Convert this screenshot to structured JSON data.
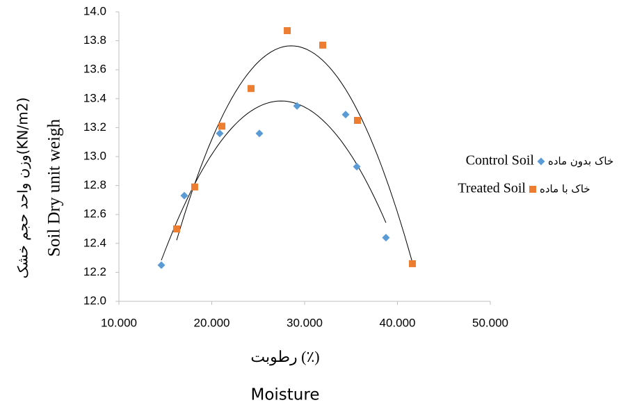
{
  "chart_data": {
    "type": "scatter",
    "x_label": "رطوبت (٪)",
    "x_label_en": "Moisture",
    "y_label": "وزن واحد حجم خشک(KN/m2)",
    "y_label_en": "Soil Dry unit weigh",
    "xlim": [
      10,
      50
    ],
    "xticks": [
      {
        "value": 10,
        "label": "10.000"
      },
      {
        "value": 20,
        "label": "20.000"
      },
      {
        "value": 30,
        "label": "30.000"
      },
      {
        "value": 40,
        "label": "40.000"
      },
      {
        "value": 50,
        "label": "50.000"
      }
    ],
    "ylim": [
      12,
      14
    ],
    "yticks": [
      {
        "value": 12,
        "label": "12.0"
      },
      {
        "value": 12.2,
        "label": "12.2"
      },
      {
        "value": 12.4,
        "label": "12.4"
      },
      {
        "value": 12.6,
        "label": "12.6"
      },
      {
        "value": 12.8,
        "label": "12.8"
      },
      {
        "value": 13,
        "label": "13.0"
      },
      {
        "value": 13.2,
        "label": "13.2"
      },
      {
        "value": 13.4,
        "label": "13.4"
      },
      {
        "value": 13.6,
        "label": "13.6"
      },
      {
        "value": 13.8,
        "label": "13.8"
      },
      {
        "value": 14,
        "label": "14.0"
      }
    ],
    "grid": false,
    "series": [
      {
        "name": "خاک بدون ماده",
        "name_en": "Control Soil",
        "color": "#5b9bd5",
        "marker": "diamond",
        "x": [
          14.57,
          17.04,
          20.86,
          25.13,
          29.18,
          34.42,
          35.62,
          38.76
        ],
        "values": [
          12.25,
          12.73,
          13.16,
          13.16,
          13.35,
          13.29,
          12.93,
          12.44
        ]
      },
      {
        "name": "خاک با ماده",
        "name_en": "Treated Soil",
        "color": "#ed7d31",
        "marker": "square",
        "x": [
          16.22,
          18.16,
          21.09,
          24.23,
          28.13,
          31.95,
          35.69,
          41.61
        ],
        "values": [
          12.5,
          12.79,
          13.21,
          13.47,
          13.87,
          13.77,
          13.25,
          12.26
        ]
      }
    ]
  }
}
